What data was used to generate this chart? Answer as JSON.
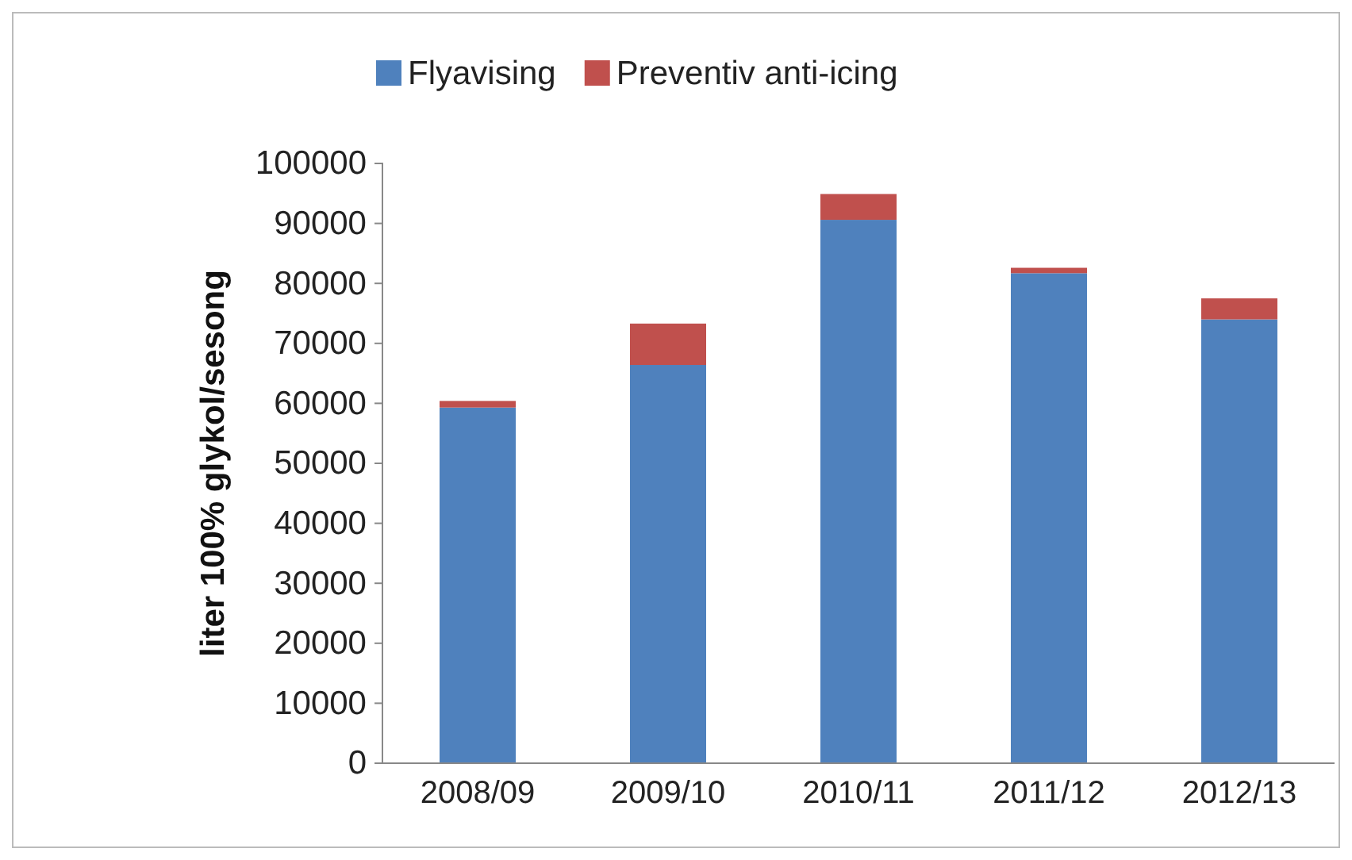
{
  "chart_data": {
    "type": "bar",
    "stacked": true,
    "ylabel": "liter 100% glykol/sesong",
    "categories": [
      "2008/09",
      "2009/10",
      "2010/11",
      "2011/12",
      "2012/13"
    ],
    "series": [
      {
        "name": "Flyavising",
        "color": "#4f81bd",
        "values": [
          59300,
          66400,
          90600,
          81700,
          74000
        ]
      },
      {
        "name": "Preventiv anti-icing",
        "color": "#c0504d",
        "values": [
          1100,
          6900,
          4300,
          900,
          3500
        ]
      }
    ],
    "ylim": [
      0,
      100000
    ],
    "yticks": [
      0,
      10000,
      20000,
      30000,
      40000,
      50000,
      60000,
      70000,
      80000,
      90000,
      100000
    ],
    "grid": false,
    "legend": "top"
  }
}
